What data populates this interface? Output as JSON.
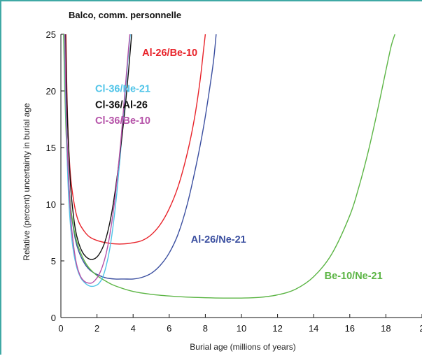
{
  "chart_data": {
    "type": "line",
    "title": "Balco, comm. personnelle",
    "xlabel": "Burial age (millions of years)",
    "ylabel": "Relative (percent) uncertainty in burial age",
    "xlim": [
      0,
      20
    ],
    "ylim": [
      0,
      25
    ],
    "xticks": [
      "0",
      "2",
      "4",
      "6",
      "8",
      "10",
      "12",
      "14",
      "16",
      "18",
      "2"
    ],
    "yticks": [
      "0",
      "5",
      "10",
      "15",
      "20",
      "25"
    ],
    "grid": false,
    "legend": "none (series labelled directly on the plot)",
    "series": [
      {
        "name": "Al-26/Be-10",
        "color": "#e8232a",
        "x": [
          0.28,
          0.32,
          0.36,
          0.42,
          0.5,
          0.6,
          0.8,
          1.0,
          1.3,
          1.6,
          2.0,
          2.5,
          3.0,
          3.5,
          4.0,
          4.5,
          5.0,
          5.5,
          6.0,
          6.5,
          7.0,
          7.4,
          7.7,
          7.9,
          8.0
        ],
        "y": [
          25,
          21,
          18.2,
          15.5,
          13.2,
          11.5,
          9.5,
          8.4,
          7.6,
          7.1,
          6.8,
          6.6,
          6.5,
          6.5,
          6.6,
          6.8,
          7.3,
          8.2,
          9.6,
          11.6,
          14.5,
          17.6,
          20.8,
          23.6,
          25
        ]
      },
      {
        "name": "Al-26/Ne-21",
        "color": "#3b4fa0",
        "x": [
          0.22,
          0.26,
          0.3,
          0.35,
          0.42,
          0.5,
          0.6,
          0.8,
          1.0,
          1.3,
          1.6,
          2.0,
          2.5,
          3.0,
          3.5,
          4.0,
          4.5,
          5.0,
          5.5,
          6.0,
          6.5,
          7.0,
          7.5,
          7.9,
          8.2,
          8.45,
          8.6
        ],
        "y": [
          25,
          21,
          18,
          15.2,
          12.6,
          10.4,
          8.9,
          6.9,
          5.8,
          4.8,
          4.2,
          3.8,
          3.5,
          3.4,
          3.4,
          3.4,
          3.55,
          3.9,
          4.6,
          5.7,
          7.4,
          10,
          13.5,
          16.8,
          19.8,
          22.6,
          25
        ]
      },
      {
        "name": "Be-10/Ne-21",
        "color": "#5cb545",
        "x": [
          0.15,
          0.2,
          0.25,
          0.3,
          0.4,
          0.5,
          0.6,
          0.8,
          1.0,
          1.3,
          1.6,
          2.0,
          2.5,
          3.0,
          4.0,
          5.0,
          6.0,
          7.0,
          8.0,
          9.0,
          10.0,
          11.0,
          12.0,
          13.0,
          14.0,
          15.0,
          16.0,
          16.5,
          17.0,
          17.5,
          18.0,
          18.3,
          18.5
        ],
        "y": [
          25,
          21.2,
          18.2,
          15.8,
          12.5,
          10.4,
          9,
          7.2,
          6.1,
          5,
          4.3,
          3.7,
          3.2,
          2.8,
          2.3,
          2.05,
          1.9,
          1.8,
          1.75,
          1.72,
          1.72,
          1.78,
          2,
          2.5,
          3.6,
          5.6,
          9,
          11.5,
          14.5,
          18,
          21.8,
          24,
          25
        ]
      },
      {
        "name": "Cl-36/Ne-21",
        "color": "#4fc4e8",
        "x": [
          0.2,
          0.24,
          0.28,
          0.32,
          0.38,
          0.45,
          0.55,
          0.7,
          0.9,
          1.1,
          1.3,
          1.5,
          1.7,
          1.9,
          2.1,
          2.3,
          2.5,
          2.7,
          2.9,
          3.1,
          3.3,
          3.5,
          3.65,
          3.78,
          3.85
        ],
        "y": [
          25,
          21,
          18,
          15.5,
          12.5,
          10,
          7.8,
          5.8,
          4.3,
          3.5,
          3.1,
          2.85,
          2.75,
          2.8,
          3,
          3.5,
          4.5,
          6,
          8.2,
          11,
          14.5,
          18.5,
          21.5,
          24,
          25
        ]
      },
      {
        "name": "Cl-36/Al-26",
        "color": "#111111",
        "x": [
          0.25,
          0.3,
          0.35,
          0.4,
          0.5,
          0.6,
          0.8,
          1.0,
          1.2,
          1.4,
          1.6,
          1.8,
          2.0,
          2.2,
          2.4,
          2.6,
          2.8,
          3.0,
          3.2,
          3.4,
          3.6,
          3.75,
          3.85,
          3.92
        ],
        "y": [
          25,
          21.2,
          18.3,
          16,
          12.6,
          10.4,
          7.8,
          6.5,
          5.75,
          5.35,
          5.15,
          5.15,
          5.35,
          5.8,
          6.5,
          7.6,
          9.1,
          11.1,
          13.5,
          16.2,
          19.2,
          21.8,
          23.7,
          25
        ]
      },
      {
        "name": "Cl-36/Be-10",
        "color": "#b552a8",
        "x": [
          0.22,
          0.26,
          0.3,
          0.35,
          0.42,
          0.5,
          0.6,
          0.75,
          0.9,
          1.1,
          1.3,
          1.5,
          1.7,
          1.9,
          2.1,
          2.3,
          2.5,
          2.7,
          2.9,
          3.1,
          3.3,
          3.5,
          3.65,
          3.75,
          3.82
        ],
        "y": [
          25,
          21,
          18,
          15.2,
          12.4,
          10,
          7.8,
          5.8,
          4.5,
          3.6,
          3.2,
          3.05,
          3.05,
          3.3,
          3.75,
          4.5,
          5.6,
          7.2,
          9.3,
          12,
          15.2,
          19,
          21.9,
          23.8,
          25
        ]
      }
    ],
    "annotations": [
      {
        "text": "Al-26/Be-10",
        "series": "Al-26/Be-10",
        "x": 4.5,
        "y": 23.1,
        "color": "#e8232a"
      },
      {
        "text": "Cl-36/Ne-21",
        "series": "Cl-36/Ne-21",
        "x": 1.9,
        "y": 19.9,
        "color": "#4fc4e8"
      },
      {
        "text": "Cl-36/Al-26",
        "series": "Cl-36/Al-26",
        "x": 1.9,
        "y": 18.5,
        "color": "#111111"
      },
      {
        "text": "Cl-36/Be-10",
        "series": "Cl-36/Be-10",
        "x": 1.9,
        "y": 17.1,
        "color": "#b552a8"
      },
      {
        "text": "Al-26/Ne-21",
        "series": "Al-26/Ne-21",
        "x": 7.2,
        "y": 6.6,
        "color": "#3b4fa0"
      },
      {
        "text": "Be-10/Ne-21",
        "series": "Be-10/Ne-21",
        "x": 14.6,
        "y": 3.4,
        "color": "#5cb545"
      }
    ]
  }
}
